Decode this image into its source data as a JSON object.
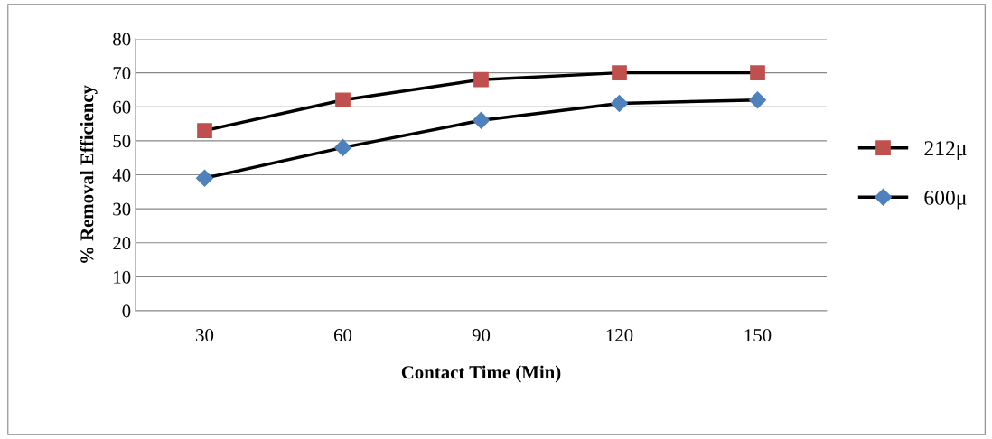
{
  "chart_data": {
    "type": "line",
    "xlabel": "Contact Time (Min)",
    "ylabel": "% Removal Efficiency",
    "categories": [
      "30",
      "60",
      "90",
      "120",
      "150"
    ],
    "series": [
      {
        "name": "212μ",
        "color": "#c0504d",
        "marker": "square",
        "values": [
          53,
          62,
          68,
          70,
          70
        ]
      },
      {
        "name": "600μ",
        "color": "#4f81bd",
        "marker": "diamond",
        "values": [
          39,
          48,
          56,
          61,
          62
        ]
      }
    ],
    "ylim": [
      0,
      80
    ],
    "yticks": [
      0,
      10,
      20,
      30,
      40,
      50,
      60,
      70,
      80
    ],
    "grid": "y",
    "legend": "right",
    "line_style": "solid"
  }
}
